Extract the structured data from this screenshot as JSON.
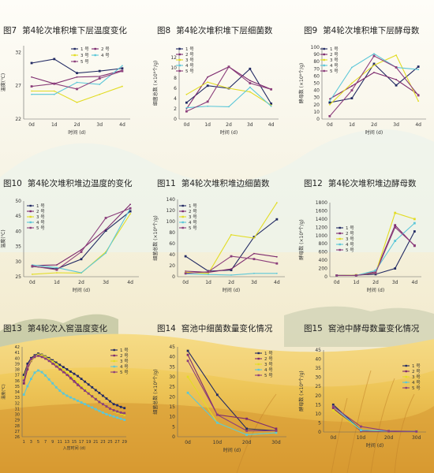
{
  "colors": {
    "s1": "#222a63",
    "s2": "#7d2a6e",
    "s3": "#e2dc24",
    "s4": "#5cc7d8",
    "s5": "#8c3f7c"
  },
  "legend": [
    "1 号",
    "2 号",
    "3 号",
    "4 号",
    "5 号"
  ],
  "chart_data": [
    {
      "id": "fig7",
      "title_no": "图7",
      "title": "第4轮次堆积堆下层温度变化",
      "type": "line",
      "ylabel": "温度(℃)",
      "xlabel": "时间 (d)",
      "categories": [
        "0d",
        "1d",
        "2d",
        "3d",
        "4d"
      ],
      "ylim": [
        22,
        33
      ],
      "yticks": [
        22,
        27,
        32
      ],
      "series": [
        {
          "name": "1 号",
          "values": [
            30.4,
            31.0,
            28.9,
            29.2,
            29.6
          ]
        },
        {
          "name": "2 号",
          "values": [
            28.3,
            27.3,
            28.3,
            28.4,
            29.3
          ]
        },
        {
          "name": "3 号",
          "values": [
            26.2,
            26.2,
            24.5,
            25.7,
            26.9
          ]
        },
        {
          "name": "4 号",
          "values": [
            25.7,
            25.7,
            27.5,
            27.2,
            30.0
          ]
        },
        {
          "name": "5 号",
          "values": [
            26.9,
            27.3,
            26.5,
            28.1,
            29.2
          ]
        }
      ]
    },
    {
      "id": "fig8",
      "title_no": "图8",
      "title": "第4轮次堆积堆下层细菌数",
      "type": "line",
      "ylabel": "细菌总数 (×10⁸个/g)",
      "xlabel": "时间 (d)",
      "categories": [
        "0d",
        "1d",
        "2d",
        "3d",
        "4d"
      ],
      "ylim": [
        0,
        14
      ],
      "yticks": [
        0,
        2,
        4,
        6,
        8,
        10,
        12
      ],
      "series": [
        {
          "name": "1 号",
          "values": [
            3.2,
            6.5,
            6.0,
            9.8,
            3.0
          ]
        },
        {
          "name": "2 号",
          "values": [
            2.0,
            8.2,
            10.2,
            7.5,
            5.8
          ]
        },
        {
          "name": "3 号",
          "values": [
            4.8,
            7.2,
            6.0,
            5.3,
            2.7
          ]
        },
        {
          "name": "4 号",
          "values": [
            2.2,
            2.5,
            2.4,
            6.2,
            2.5
          ]
        },
        {
          "name": "5 号",
          "values": [
            1.5,
            3.4,
            10.2,
            7.0,
            5.8
          ]
        }
      ]
    },
    {
      "id": "fig9",
      "title_no": "图9",
      "title": "第4轮次堆积堆下层酵母数",
      "type": "line",
      "ylabel": "酵母数 (×10⁶个/g)",
      "xlabel": "时间 (d)",
      "categories": [
        "0d",
        "1d",
        "2d",
        "3d",
        "4d"
      ],
      "ylim": [
        0,
        100
      ],
      "yticks": [
        0,
        10,
        20,
        30,
        40,
        50,
        60,
        70,
        80,
        90,
        100
      ],
      "series": [
        {
          "name": "1 号",
          "values": [
            23,
            29,
            77,
            47,
            73
          ]
        },
        {
          "name": "2 号",
          "values": [
            28,
            46,
            65,
            55,
            34
          ]
        },
        {
          "name": "3 号",
          "values": [
            20,
            50,
            75,
            89,
            25
          ]
        },
        {
          "name": "4 号",
          "values": [
            25,
            72,
            91,
            72,
            69
          ]
        },
        {
          "name": "5 号",
          "values": [
            4,
            40,
            88,
            72,
            33
          ]
        }
      ]
    },
    {
      "id": "fig10",
      "title_no": "图10",
      "title": "第4轮次堆积堆边温度的变化",
      "type": "line",
      "ylabel": "温度(℃)",
      "xlabel": "时间 (d)",
      "categories": [
        "0d",
        "1d",
        "2d",
        "3d",
        "4d"
      ],
      "ylim": [
        25,
        50
      ],
      "yticks": [
        25,
        30,
        35,
        40,
        45,
        50
      ],
      "series": [
        {
          "name": "1 号",
          "values": [
            28.4,
            27.6,
            30.8,
            40.2,
            46.6
          ]
        },
        {
          "name": "2 号",
          "values": [
            28.7,
            28.9,
            33.9,
            40.6,
            48.9
          ]
        },
        {
          "name": "3 号",
          "values": [
            25.8,
            26.3,
            26.2,
            33.2,
            45.8
          ]
        },
        {
          "name": "4 号",
          "values": [
            28.9,
            28.0,
            26.3,
            32.8,
            47.6
          ]
        },
        {
          "name": "5 号",
          "values": [
            28.5,
            27.3,
            33.2,
            44.4,
            47.6
          ]
        }
      ]
    },
    {
      "id": "fig11",
      "title_no": "图11",
      "title": "第4轮次堆积堆边细菌数",
      "type": "line",
      "ylabel": "细菌总数 (×10⁸个/g)",
      "xlabel": "时间 (d)",
      "categories": [
        "0d",
        "1d",
        "2d",
        "3d",
        "4d"
      ],
      "ylim": [
        0,
        140
      ],
      "yticks": [
        0,
        20,
        40,
        60,
        80,
        100,
        120,
        140
      ],
      "series": [
        {
          "name": "1 号",
          "values": [
            37,
            10,
            12,
            72,
            104
          ]
        },
        {
          "name": "2 号",
          "values": [
            10,
            8,
            14,
            42,
            36
          ]
        },
        {
          "name": "3 号",
          "values": [
            8,
            6,
            76,
            70,
            134
          ]
        },
        {
          "name": "4 号",
          "values": [
            5,
            4,
            3,
            6,
            6
          ]
        },
        {
          "name": "5 号",
          "values": [
            6,
            9,
            37,
            32,
            24
          ]
        }
      ]
    },
    {
      "id": "fig12",
      "title_no": "图12",
      "title": "第4轮次堆积堆边酵母数",
      "type": "line",
      "ylabel": "酵母数 (×10⁶个/g)",
      "xlabel": "时间 (d)",
      "categories": [
        "0d",
        "1d",
        "2d",
        "3d",
        "4d"
      ],
      "ylim": [
        0,
        1800
      ],
      "yticks": [
        0,
        200,
        400,
        600,
        800,
        1000,
        1200,
        1400,
        1600,
        1800
      ],
      "series": [
        {
          "name": "1 号",
          "values": [
            30,
            40,
            60,
            200,
            1100
          ]
        },
        {
          "name": "2 号",
          "values": [
            30,
            30,
            120,
            1250,
            750
          ]
        },
        {
          "name": "3 号",
          "values": [
            30,
            40,
            90,
            1550,
            1400
          ]
        },
        {
          "name": "4 号",
          "values": [
            30,
            30,
            150,
            870,
            1300
          ]
        },
        {
          "name": "5 号",
          "values": [
            30,
            30,
            90,
            1200,
            760
          ]
        }
      ]
    },
    {
      "id": "fig13",
      "title_no": "图13",
      "title": "第4轮次入窖温度变化",
      "type": "line",
      "ylabel": "温度(℃)",
      "xlabel": "入窖时间 (d)",
      "x": [
        1,
        2,
        3,
        4,
        5,
        6,
        7,
        8,
        9,
        10,
        11,
        12,
        13,
        14,
        15,
        16,
        17,
        18,
        19,
        20,
        21,
        22,
        23,
        24,
        25,
        26,
        27,
        28,
        29
      ],
      "xticks": [
        1,
        3,
        5,
        7,
        9,
        11,
        13,
        15,
        17,
        19,
        21,
        23,
        25,
        27,
        29
      ],
      "ylim": [
        26,
        42
      ],
      "yticks": [
        26,
        27,
        28,
        29,
        30,
        31,
        32,
        33,
        34,
        35,
        36,
        37,
        38,
        39,
        40,
        41,
        42
      ],
      "series": [
        {
          "name": "1 号",
          "values": [
            37,
            39,
            40,
            40.5,
            40.8,
            40.6,
            40.3,
            40,
            39.6,
            39.2,
            38.8,
            38.4,
            38,
            37.6,
            37.2,
            36.8,
            36.3,
            35.8,
            35.3,
            34.8,
            34.3,
            33.8,
            33.3,
            32.8,
            32.3,
            31.8,
            31.6,
            31.3,
            31.1
          ]
        },
        {
          "name": "2 号",
          "values": [
            35.5,
            38,
            39.5,
            40.2,
            40.5,
            40.4,
            40.1,
            39.7,
            39.2,
            38.7,
            38.2,
            37.7,
            37.2,
            36.6,
            36,
            35.4,
            34.8,
            34.2,
            33.7,
            33.2,
            32.7,
            32.2,
            31.8,
            31.4,
            31,
            30.7,
            30.4,
            30.2,
            30
          ]
        },
        {
          "name": "3 号",
          "values": [
            36.5,
            38.5,
            39.6,
            40.3,
            40.6,
            40.5,
            40.2,
            39.8,
            39.4,
            38.9,
            38.4,
            37.9,
            37.4,
            36.9,
            36.3,
            35.7,
            35.1,
            34.5,
            33.9,
            33.3,
            32.8,
            32.3,
            31.8,
            31.4,
            31,
            30.6,
            30.3,
            30.1,
            29.9
          ]
        },
        {
          "name": "4 号",
          "values": [
            33.5,
            35,
            36.3,
            37.4,
            37.8,
            37.5,
            36.9,
            36.2,
            35.5,
            34.8,
            34.2,
            33.7,
            33.3,
            33,
            32.7,
            32.4,
            32.1,
            31.8,
            31.5,
            31.2,
            30.9,
            30.6,
            30.3,
            30,
            29.8,
            29.6,
            29.4,
            29.2,
            29
          ]
        },
        {
          "name": "5 号",
          "values": [
            36,
            38.6,
            39.8,
            40.3,
            40.4,
            40.2,
            39.9,
            39.5,
            39,
            38.5,
            38,
            37.5,
            37,
            36.4,
            35.8,
            35.2,
            34.7,
            34.2,
            33.7,
            33.2,
            32.7,
            32.2,
            31.8,
            31.4,
            31,
            30.7,
            30.5,
            30.3,
            30.2
          ]
        }
      ]
    },
    {
      "id": "fig14",
      "title_no": "图14",
      "title": "窖池中细菌数量变化情况",
      "type": "line",
      "ylabel": "细菌总数 (×10⁸个/g)",
      "xlabel": "时间 (d)",
      "categories": [
        "0d",
        "10d",
        "20d",
        "30d"
      ],
      "ylim": [
        0,
        45
      ],
      "yticks": [
        0,
        5,
        10,
        15,
        20,
        25,
        30,
        35,
        40,
        45
      ],
      "series": [
        {
          "name": "1 号",
          "values": [
            43,
            21,
            4,
            3
          ]
        },
        {
          "name": "2 号",
          "values": [
            41,
            11,
            9,
            4
          ]
        },
        {
          "name": "3 号",
          "values": [
            30,
            7,
            1,
            2
          ]
        },
        {
          "name": "4 号",
          "values": [
            22,
            7,
            1,
            2
          ]
        },
        {
          "name": "5 号",
          "values": [
            38,
            11,
            3,
            3
          ]
        }
      ]
    },
    {
      "id": "fig15",
      "title_no": "图15",
      "title": "窖池中酵母数量变化情况",
      "type": "line",
      "ylabel": "酵母数 (×10⁶个/g)",
      "xlabel": "时间 (d)",
      "categories": [
        "0d",
        "10d",
        "20d",
        "30d"
      ],
      "ylim": [
        0,
        45
      ],
      "yticks": [
        0,
        5,
        10,
        15,
        20,
        25,
        30,
        35,
        40,
        45
      ],
      "series": [
        {
          "name": "1 号",
          "values": [
            15,
            1,
            0.5,
            0.5
          ]
        },
        {
          "name": "2 号",
          "values": [
            13,
            0.5,
            0.3,
            0.3
          ]
        },
        {
          "name": "3 号",
          "values": [
            12,
            1,
            0.5,
            0.5
          ]
        },
        {
          "name": "4 号",
          "values": [
            14,
            1,
            0.5,
            0.3
          ]
        },
        {
          "name": "5 号",
          "values": [
            14,
            3,
            0.5,
            0.3
          ]
        }
      ]
    }
  ]
}
